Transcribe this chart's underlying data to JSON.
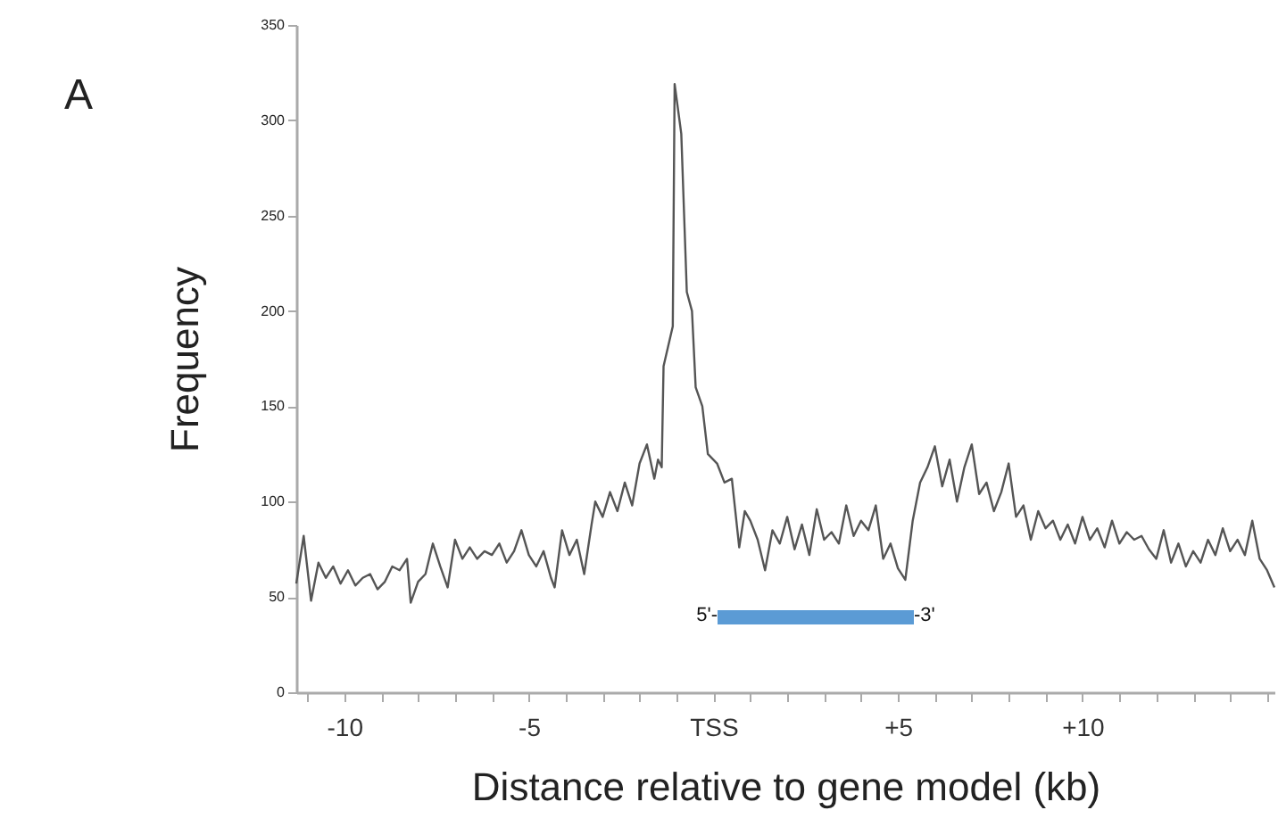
{
  "chart_data": {
    "type": "line",
    "xlabel": "Distance relative to gene model (kb)",
    "ylabel": "Frequency",
    "annotations": [
      "A",
      "5'-",
      "-3'"
    ],
    "xlim": [
      -11.3,
      15.2
    ],
    "ylim": [
      0,
      350
    ],
    "xticks": [
      {
        "value": -11,
        "label": null
      },
      {
        "value": -10,
        "label": "-10"
      },
      {
        "value": -9,
        "label": null
      },
      {
        "value": -8,
        "label": null
      },
      {
        "value": -7,
        "label": null
      },
      {
        "value": -6,
        "label": null
      },
      {
        "value": -5,
        "label": "-5"
      },
      {
        "value": -4,
        "label": null
      },
      {
        "value": -3,
        "label": null
      },
      {
        "value": -2,
        "label": null
      },
      {
        "value": -1,
        "label": null
      },
      {
        "value": 0,
        "label": "TSS"
      },
      {
        "value": 1,
        "label": null
      },
      {
        "value": 2,
        "label": null
      },
      {
        "value": 3,
        "label": null
      },
      {
        "value": 4,
        "label": null
      },
      {
        "value": 5,
        "label": "+5"
      },
      {
        "value": 6,
        "label": null
      },
      {
        "value": 7,
        "label": null
      },
      {
        "value": 8,
        "label": null
      },
      {
        "value": 9,
        "label": null
      },
      {
        "value": 10,
        "label": "+10"
      },
      {
        "value": 11,
        "label": null
      },
      {
        "value": 12,
        "label": null
      },
      {
        "value": 13,
        "label": null
      },
      {
        "value": 14,
        "label": null
      },
      {
        "value": 15,
        "label": null
      }
    ],
    "yticks": [
      0,
      50,
      100,
      150,
      200,
      250,
      300,
      350
    ],
    "grid": false,
    "x": [
      -11.3,
      -11.1,
      -10.9,
      -10.7,
      -10.5,
      -10.3,
      -10.1,
      -9.9,
      -9.7,
      -9.5,
      -9.3,
      -9.1,
      -8.9,
      -8.7,
      -8.5,
      -8.3,
      -8.2,
      -8.0,
      -7.8,
      -7.6,
      -7.4,
      -7.2,
      -7.0,
      -6.8,
      -6.6,
      -6.4,
      -6.2,
      -6.0,
      -5.8,
      -5.6,
      -5.4,
      -5.2,
      -5.0,
      -4.8,
      -4.6,
      -4.4,
      -4.3,
      -4.1,
      -3.9,
      -3.7,
      -3.5,
      -3.3,
      -3.2,
      -3.0,
      -2.8,
      -2.6,
      -2.4,
      -2.2,
      -2.0,
      -1.8,
      -1.6,
      -1.5,
      -1.4,
      -1.35,
      -1.1,
      -1.05,
      -0.87,
      -0.72,
      -0.58,
      -0.48,
      -0.3,
      -0.15,
      0.1,
      0.3,
      0.5,
      0.7,
      0.85,
      1.0,
      1.2,
      1.4,
      1.6,
      1.8,
      2.0,
      2.2,
      2.4,
      2.6,
      2.8,
      3.0,
      3.2,
      3.4,
      3.6,
      3.8,
      4.0,
      4.2,
      4.4,
      4.6,
      4.8,
      5.0,
      5.2,
      5.4,
      5.6,
      5.8,
      6.0,
      6.2,
      6.4,
      6.6,
      6.8,
      7.0,
      7.2,
      7.4,
      7.6,
      7.8,
      8.0,
      8.2,
      8.4,
      8.6,
      8.8,
      9.0,
      9.2,
      9.4,
      9.6,
      9.8,
      10.0,
      10.2,
      10.4,
      10.6,
      10.8,
      11.0,
      11.2,
      11.4,
      11.6,
      11.8,
      12.0,
      12.2,
      12.4,
      12.6,
      12.8,
      13.0,
      13.2,
      13.4,
      13.6,
      13.8,
      14.0,
      14.2,
      14.4,
      14.6,
      14.8,
      15.0,
      15.2
    ],
    "series": [
      {
        "color": "#555555",
        "values": [
          57,
          82,
          48,
          68,
          60,
          66,
          57,
          64,
          56,
          60,
          62,
          54,
          58,
          66,
          64,
          70,
          47,
          58,
          62,
          78,
          66,
          55,
          80,
          70,
          76,
          70,
          74,
          72,
          78,
          68,
          74,
          85,
          72,
          66,
          74,
          60,
          55,
          85,
          72,
          80,
          62,
          88,
          100,
          92,
          105,
          95,
          110,
          98,
          120,
          130,
          112,
          122,
          118,
          171,
          192,
          319,
          293,
          210,
          200,
          160,
          150,
          125,
          120,
          110,
          112,
          76,
          95,
          90,
          80,
          64,
          85,
          78,
          92,
          75,
          88,
          72,
          96,
          80,
          84,
          78,
          98,
          82,
          90,
          85,
          98,
          70,
          78,
          65,
          59,
          90,
          110,
          118,
          129,
          108,
          122,
          100,
          118,
          130,
          104,
          110,
          95,
          105,
          120,
          92,
          98,
          80,
          95,
          86,
          90,
          80,
          88,
          78,
          92,
          80,
          86,
          76,
          90,
          78,
          84,
          80,
          82,
          75,
          70,
          85,
          68,
          78,
          66,
          74,
          68,
          80,
          72,
          86,
          74,
          80,
          72,
          90,
          70,
          64,
          55
        ]
      }
    ]
  }
}
